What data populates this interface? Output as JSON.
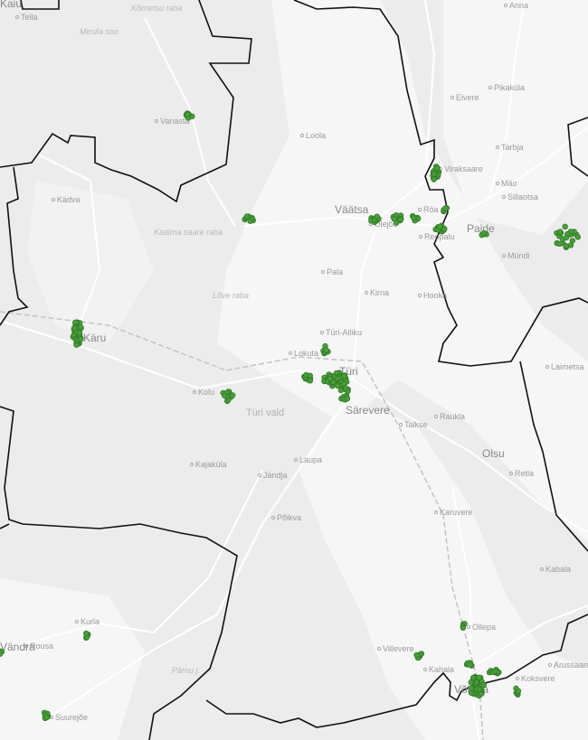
{
  "map": {
    "colors": {
      "background": "#ececec",
      "open_land": "#f6f6f6",
      "road": "#ffffff",
      "boundary": "#111111",
      "railway": "#bdbdbd",
      "point_fill": "#4a9e3a",
      "point_stroke": "#2f7a26"
    },
    "labels": [
      {
        "text": "Kaiu",
        "kind": "town"
      },
      {
        "text": "Kõrnetsu raba",
        "kind": "natural"
      },
      {
        "text": "Tella",
        "kind": "village"
      },
      {
        "text": "Mesila soo",
        "kind": "natural"
      },
      {
        "text": "Vanasta",
        "kind": "village"
      },
      {
        "text": "Kädva",
        "kind": "village"
      },
      {
        "text": "Kaalma saare raba",
        "kind": "natural"
      },
      {
        "text": "Lõve raba",
        "kind": "natural"
      },
      {
        "text": "Käru",
        "kind": "town"
      },
      {
        "text": "Kolu",
        "kind": "village"
      },
      {
        "text": "Türi vald",
        "kind": "area"
      },
      {
        "text": "Kajaküla",
        "kind": "village"
      },
      {
        "text": "Jändja",
        "kind": "village"
      },
      {
        "text": "Laupa",
        "kind": "village"
      },
      {
        "text": "Põikva",
        "kind": "village"
      },
      {
        "text": "Kurla",
        "kind": "village"
      },
      {
        "text": "Rousa",
        "kind": "village"
      },
      {
        "text": "Vändra",
        "kind": "town"
      },
      {
        "text": "Suurejõe",
        "kind": "village"
      },
      {
        "text": "Pärnu j.",
        "kind": "natural"
      },
      {
        "text": "Anna",
        "kind": "village"
      },
      {
        "text": "Pikaküla",
        "kind": "village"
      },
      {
        "text": "Eivere",
        "kind": "village"
      },
      {
        "text": "Loola",
        "kind": "village"
      },
      {
        "text": "Tarbja",
        "kind": "village"
      },
      {
        "text": "Viraksaare",
        "kind": "village"
      },
      {
        "text": "Mäo",
        "kind": "village"
      },
      {
        "text": "Sillaotsa",
        "kind": "village"
      },
      {
        "text": "Väätsa",
        "kind": "town"
      },
      {
        "text": "Röa",
        "kind": "village"
      },
      {
        "text": "Ülejõe",
        "kind": "village"
      },
      {
        "text": "Reopalu",
        "kind": "village"
      },
      {
        "text": "Paide",
        "kind": "town"
      },
      {
        "text": "Mündi",
        "kind": "village"
      },
      {
        "text": "Pala",
        "kind": "village"
      },
      {
        "text": "Kirna",
        "kind": "village"
      },
      {
        "text": "Hooka",
        "kind": "village"
      },
      {
        "text": "Türi-Alliku",
        "kind": "village"
      },
      {
        "text": "Lokuta",
        "kind": "village"
      },
      {
        "text": "Türi",
        "kind": "town"
      },
      {
        "text": "Särevere",
        "kind": "town"
      },
      {
        "text": "Taikse",
        "kind": "village"
      },
      {
        "text": "Raukla",
        "kind": "village"
      },
      {
        "text": "Olsu",
        "kind": "town"
      },
      {
        "text": "Retla",
        "kind": "village"
      },
      {
        "text": "Karuvere",
        "kind": "village"
      },
      {
        "text": "Kabala",
        "kind": "village"
      },
      {
        "text": "Ollepa",
        "kind": "village"
      },
      {
        "text": "Villevere",
        "kind": "village"
      },
      {
        "text": "Kahala",
        "kind": "village"
      },
      {
        "text": "Võhma",
        "kind": "town"
      },
      {
        "text": "Koksvere",
        "kind": "village"
      },
      {
        "text": "Arussaare",
        "kind": "village"
      },
      {
        "text": "Laimetsa",
        "kind": "village"
      }
    ]
  }
}
